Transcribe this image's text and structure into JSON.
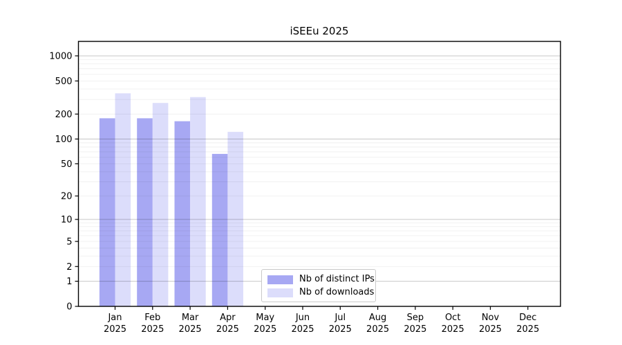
{
  "chart_data": {
    "type": "bar",
    "title": "iSEEu 2025",
    "xlabel": "",
    "ylabel": "",
    "year": "2025",
    "categories": [
      "Jan",
      "Feb",
      "Mar",
      "Apr",
      "May",
      "Jun",
      "Jul",
      "Aug",
      "Sep",
      "Oct",
      "Nov",
      "Dec"
    ],
    "series": [
      {
        "name": "Nb of distinct IPs",
        "color": "#a7a8f3",
        "values": [
          178,
          178,
          164,
          66,
          0,
          0,
          0,
          0,
          0,
          0,
          0,
          0
        ]
      },
      {
        "name": "Nb of downloads",
        "color": "#dcddfb",
        "values": [
          355,
          272,
          320,
          122,
          0,
          0,
          0,
          0,
          0,
          0,
          0,
          0
        ]
      }
    ],
    "yticks": [
      0,
      1,
      2,
      5,
      10,
      20,
      50,
      100,
      200,
      500,
      1000
    ],
    "ylim": [
      0,
      1500
    ],
    "scale": "log10(1+v)",
    "grid": "on",
    "legend_position": "bottom-center-inside",
    "colors": {
      "spine": "#000000",
      "major_grid": "rgba(0,0,0,0.22)",
      "minor_grid": "rgba(0,0,0,0.07)",
      "tick_text": "#000000"
    }
  }
}
